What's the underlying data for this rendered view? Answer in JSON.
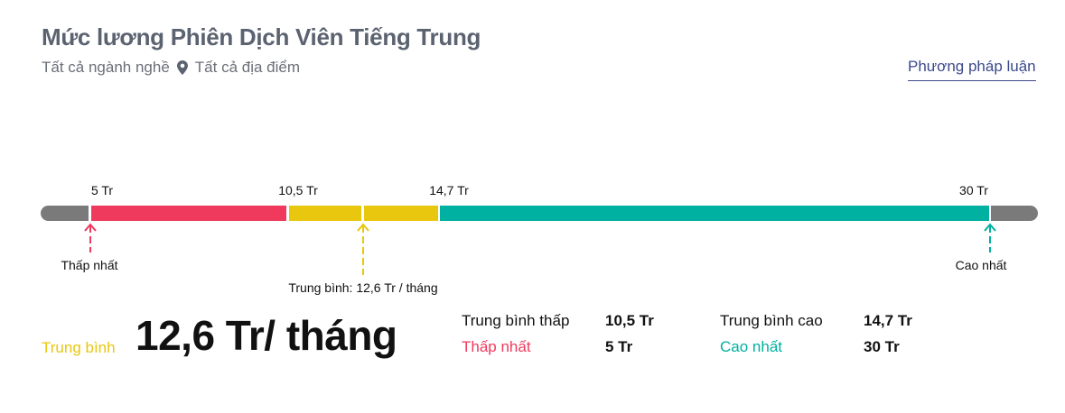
{
  "header": {
    "title": "Mức lương Phiên Dịch Viên Tiếng Trung",
    "industry": "Tất cả ngành nghề",
    "location_icon": "map-pin-icon",
    "location": "Tất cả địa điểm",
    "methodology_link": "Phương pháp luận"
  },
  "range": {
    "ticks": {
      "min": "5 Tr",
      "avg_low": "10,5 Tr",
      "avg_high": "14,7 Tr",
      "max": "30 Tr"
    },
    "markers": {
      "min": "Thấp nhất",
      "avg": "Trung bình: 12,6 Tr / tháng",
      "max": "Cao nhất"
    },
    "values_million": {
      "min": 5,
      "avg_low": 10.5,
      "avg": 12.6,
      "avg_high": 14.7,
      "max": 30
    }
  },
  "summary": {
    "avg_label": "Trung bình",
    "avg_value": "12,6 Tr/ tháng",
    "stats": [
      {
        "label": "Trung bình thấp",
        "value": "10,5 Tr"
      },
      {
        "label": "Trung bình cao",
        "value": "14,7 Tr"
      },
      {
        "label": "Thấp nhất",
        "value": "5 Tr"
      },
      {
        "label": "Cao nhất",
        "value": "30 Tr"
      }
    ]
  },
  "colors": {
    "gray": "#7a7a7a",
    "low": "#ef3a5d",
    "avg": "#e8c70e",
    "high": "#00b0a0",
    "title": "#5b6270"
  }
}
